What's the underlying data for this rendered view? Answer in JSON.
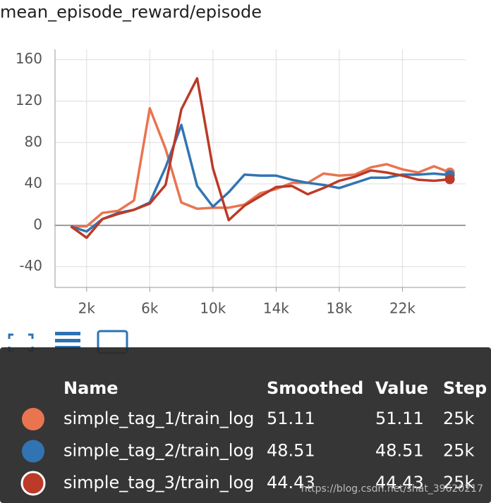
{
  "chart_data": {
    "type": "line",
    "title": "mean_episode_reward/episode",
    "x": [
      1000,
      2000,
      3000,
      4000,
      5000,
      6000,
      7000,
      8000,
      9000,
      10000,
      11000,
      12000,
      13000,
      14000,
      15000,
      16000,
      17000,
      18000,
      19000,
      20000,
      21000,
      22000,
      23000,
      24000,
      25000
    ],
    "series": [
      {
        "name": "simple_tag_1/train_log",
        "color": "#e9744f",
        "values": [
          -1,
          -1,
          12,
          14,
          24,
          113,
          74,
          22,
          16,
          17,
          17,
          20,
          31,
          35,
          41,
          41,
          50,
          48,
          49,
          56,
          59,
          54,
          51,
          57,
          51.11
        ]
      },
      {
        "name": "simple_tag_2/train_log",
        "color": "#3274b3",
        "values": [
          -1,
          -6,
          6,
          12,
          15,
          22,
          56,
          97,
          38,
          18,
          32,
          49,
          48,
          48,
          44,
          41,
          39,
          36,
          41,
          46,
          46,
          49,
          49,
          50,
          48.51
        ]
      },
      {
        "name": "simple_tag_3/train_log",
        "color": "#bb3a28",
        "values": [
          -1,
          -12,
          6,
          11,
          15,
          21,
          39,
          112,
          142,
          55,
          5,
          19,
          28,
          37,
          38,
          30,
          36,
          43,
          47,
          53,
          51,
          48,
          44,
          43,
          44.43
        ]
      }
    ],
    "xlim": [
      0,
      26000
    ],
    "xticks": [
      {
        "value": 2000,
        "label": "2k"
      },
      {
        "value": 6000,
        "label": "6k"
      },
      {
        "value": 10000,
        "label": "10k"
      },
      {
        "value": 14000,
        "label": "14k"
      },
      {
        "value": 18000,
        "label": "18k"
      },
      {
        "value": 22000,
        "label": "22k"
      }
    ],
    "ylim": [
      -60,
      170
    ],
    "yticks": [
      -40,
      0,
      40,
      80,
      120,
      160
    ],
    "grid": true
  },
  "tooltip": {
    "headers": [
      "Name",
      "Smoothed",
      "Value",
      "Step"
    ],
    "rows": [
      [
        "simple_tag_1/train_log",
        "51.11",
        "51.11",
        "25k"
      ],
      [
        "simple_tag_2/train_log",
        "48.51",
        "48.51",
        "25k"
      ],
      [
        "simple_tag_3/train_log",
        "44.43",
        "44.43",
        "25k"
      ]
    ]
  },
  "watermark": "https://blog.csdn.net/shat_39620217"
}
